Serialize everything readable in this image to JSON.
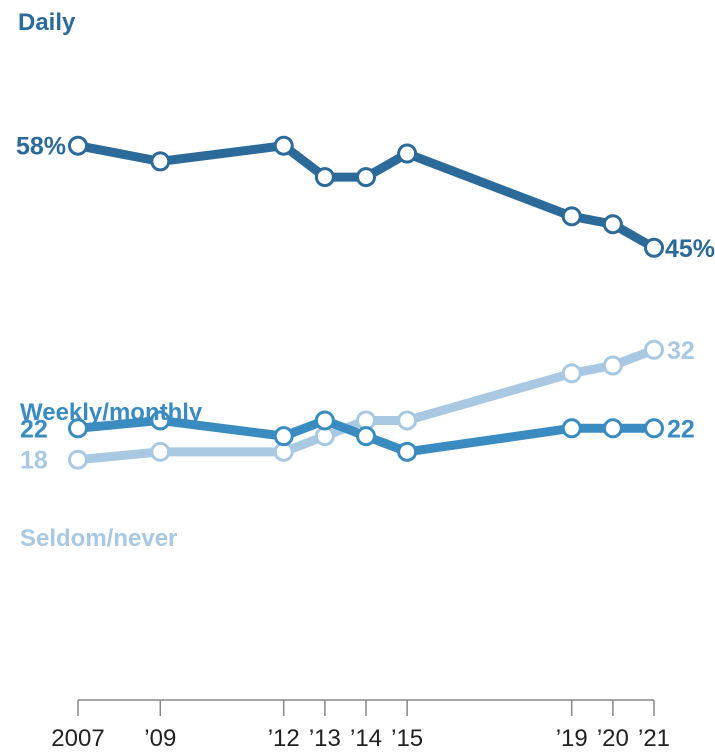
{
  "chart_data": {
    "type": "line",
    "title": "",
    "xlabel": "",
    "ylabel": "",
    "x": [
      2007,
      2009,
      2012,
      2013,
      2014,
      2015,
      2019,
      2020,
      2021
    ],
    "tick_labels": [
      "2007",
      "’09",
      "’12",
      "’13",
      "’14",
      "’15",
      "’19",
      "’20",
      "’21"
    ],
    "ylim": [
      0,
      62
    ],
    "grid": false,
    "legend": "inline labels",
    "series": [
      {
        "name": "Daily",
        "color": "#2b6a99",
        "values": [
          58,
          56,
          58,
          54,
          54,
          57,
          49,
          48,
          45
        ],
        "start_label": "58%",
        "end_label": "45%"
      },
      {
        "name": "Weekly/monthly",
        "color": "#3a8cc0",
        "values": [
          22,
          23,
          21,
          23,
          21,
          19,
          22,
          22,
          22
        ],
        "start_label": "22",
        "end_label": "22"
      },
      {
        "name": "Seldom/never",
        "color": "#a9c9e3",
        "values": [
          18,
          19,
          19,
          21,
          23,
          23,
          29,
          30,
          32
        ],
        "start_label": "18",
        "end_label": "32"
      }
    ]
  }
}
